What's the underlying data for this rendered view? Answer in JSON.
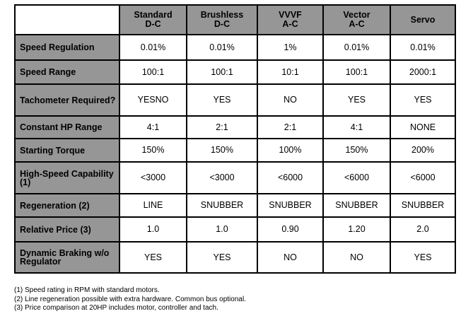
{
  "table": {
    "columns": [
      {
        "line1": "Standard",
        "line2": "D-C"
      },
      {
        "line1": "Brushless",
        "line2": "D-C"
      },
      {
        "line1": "VVVF",
        "line2": "A-C"
      },
      {
        "line1": "Vector",
        "line2": "A-C"
      },
      {
        "line1": "Servo",
        "line2": ""
      }
    ],
    "rows": [
      {
        "label": "Speed Regulation",
        "cells": [
          "0.01%",
          "0.01%",
          "1%",
          "0.01%",
          "0.01%"
        ]
      },
      {
        "label": "Speed Range",
        "cells": [
          "100:1",
          "100:1",
          "10:1",
          "100:1",
          "2000:1"
        ]
      },
      {
        "label": "Tachometer Required?",
        "cells": [
          "YESNO",
          "YES",
          "NO",
          "YES",
          "YES"
        ]
      },
      {
        "label": "Constant HP Range",
        "cells": [
          "4:1",
          "2:1",
          "2:1",
          "4:1",
          "NONE"
        ]
      },
      {
        "label": "Starting Torque",
        "cells": [
          "150%",
          "150%",
          "100%",
          "150%",
          "200%"
        ]
      },
      {
        "label": "High-Speed Capability (1)",
        "cells": [
          "<3000",
          "<3000",
          "<6000",
          "<6000",
          "<6000"
        ]
      },
      {
        "label": "Regeneration (2)",
        "cells": [
          "LINE",
          "SNUBBER",
          "SNUBBER",
          "SNUBBER",
          "SNUBBER"
        ]
      },
      {
        "label": "Relative Price (3)",
        "cells": [
          "1.0",
          "1.0",
          "0.90",
          "1.20",
          "2.0"
        ]
      },
      {
        "label": "Dynamic Braking w/o Regulator",
        "cells": [
          "YES",
          "YES",
          "NO",
          "NO",
          "YES"
        ]
      }
    ]
  },
  "notes": [
    "(1) Speed rating in RPM with standard motors.",
    "(2) Line regeneration possible with extra hardware. Common bus optional.",
    "(3) Price comparison at 20HP includes motor, controller and tach."
  ]
}
